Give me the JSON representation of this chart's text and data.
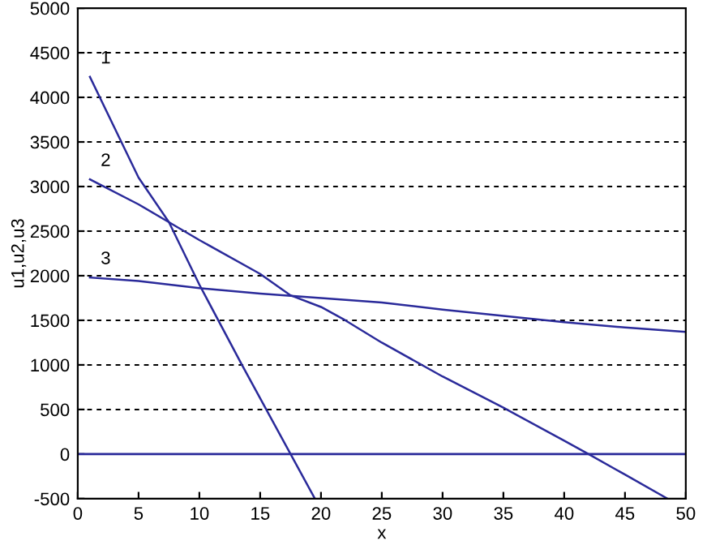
{
  "chart_data": {
    "type": "line",
    "xlabel": "x",
    "ylabel": "u1,u2,u3",
    "xlim": [
      0,
      50
    ],
    "ylim": [
      -500,
      5000
    ],
    "xticks": [
      0,
      5,
      10,
      15,
      20,
      25,
      30,
      35,
      40,
      45,
      50
    ],
    "yticks": [
      -500,
      0,
      500,
      1000,
      1500,
      2000,
      2500,
      3000,
      3500,
      4000,
      4500,
      5000
    ],
    "grid": "y",
    "line_style": "solid",
    "marker": "none",
    "series": [
      {
        "color": "#2a2a9a",
        "x": [
          1,
          5,
          7.5,
          10,
          13.5,
          15.5,
          17.5,
          19.5
        ],
        "values": [
          4230,
          3100,
          2600,
          1900,
          1000,
          500,
          0,
          -500
        ]
      },
      {
        "color": "#2a2a9a",
        "x": [
          1,
          5,
          7.5,
          10,
          15,
          17.5,
          20,
          22,
          25,
          30,
          35,
          40,
          42,
          45,
          48.5
        ],
        "values": [
          3080,
          2800,
          2600,
          2400,
          2020,
          1780,
          1650,
          1500,
          1250,
          870,
          520,
          150,
          0,
          -230,
          -500
        ]
      },
      {
        "color": "#2a2a9a",
        "x": [
          1,
          5,
          10,
          15,
          20,
          25,
          30,
          35,
          40,
          45,
          50
        ],
        "values": [
          1980,
          1940,
          1860,
          1800,
          1750,
          1700,
          1620,
          1550,
          1480,
          1420,
          1370
        ]
      }
    ],
    "ref_lines": [
      {
        "axis": "y",
        "value": 0,
        "color": "#2a2a9a"
      }
    ],
    "annotations": [
      "1",
      "2",
      "3"
    ]
  }
}
